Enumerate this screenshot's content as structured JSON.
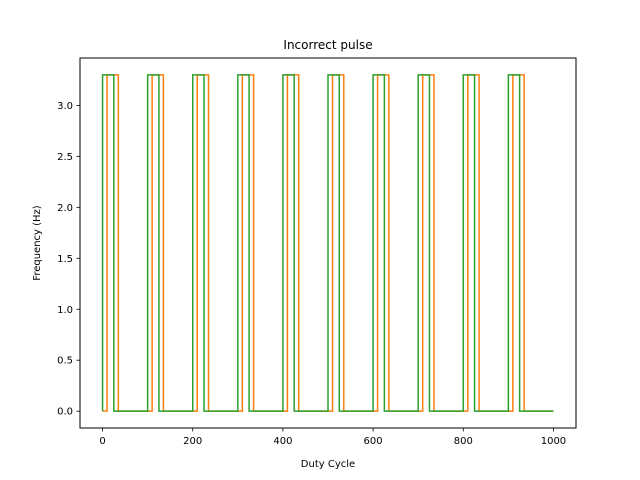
{
  "chart_data": {
    "type": "line",
    "title": "Incorrect pulse",
    "xlabel": "Duty Cycle",
    "ylabel": "Frequency (Hz)",
    "xlim": [
      -50,
      1050
    ],
    "ylim": [
      -0.165,
      3.465
    ],
    "grid": false,
    "xticks": [
      0,
      200,
      400,
      600,
      800,
      1000
    ],
    "xtick_labels": [
      "0",
      "200",
      "400",
      "600",
      "800",
      "1000"
    ],
    "yticks": [
      0.0,
      0.5,
      1.0,
      1.5,
      2.0,
      2.5,
      3.0
    ],
    "ytick_labels": [
      "0.0",
      "0.5",
      "1.0",
      "1.5",
      "2.0",
      "2.5",
      "3.0"
    ],
    "series": [
      {
        "color": "#ff7f0e",
        "pulses": [
          [
            10,
            35
          ],
          [
            110,
            135
          ],
          [
            210,
            235
          ],
          [
            310,
            335
          ],
          [
            410,
            435
          ],
          [
            510,
            535
          ],
          [
            610,
            635
          ],
          [
            710,
            735
          ],
          [
            810,
            835
          ],
          [
            910,
            935
          ]
        ],
        "high": 3.3,
        "low": 0.0,
        "x_start": 0,
        "x_end": 1000
      },
      {
        "color": "#2ca02c",
        "pulses": [
          [
            0,
            25
          ],
          [
            100,
            125
          ],
          [
            200,
            225
          ],
          [
            300,
            325
          ],
          [
            400,
            425
          ],
          [
            500,
            525
          ],
          [
            600,
            625
          ],
          [
            700,
            725
          ],
          [
            800,
            825
          ],
          [
            900,
            925
          ]
        ],
        "high": 3.3,
        "low": 0.0,
        "x_start": 0,
        "x_end": 1000
      }
    ]
  }
}
